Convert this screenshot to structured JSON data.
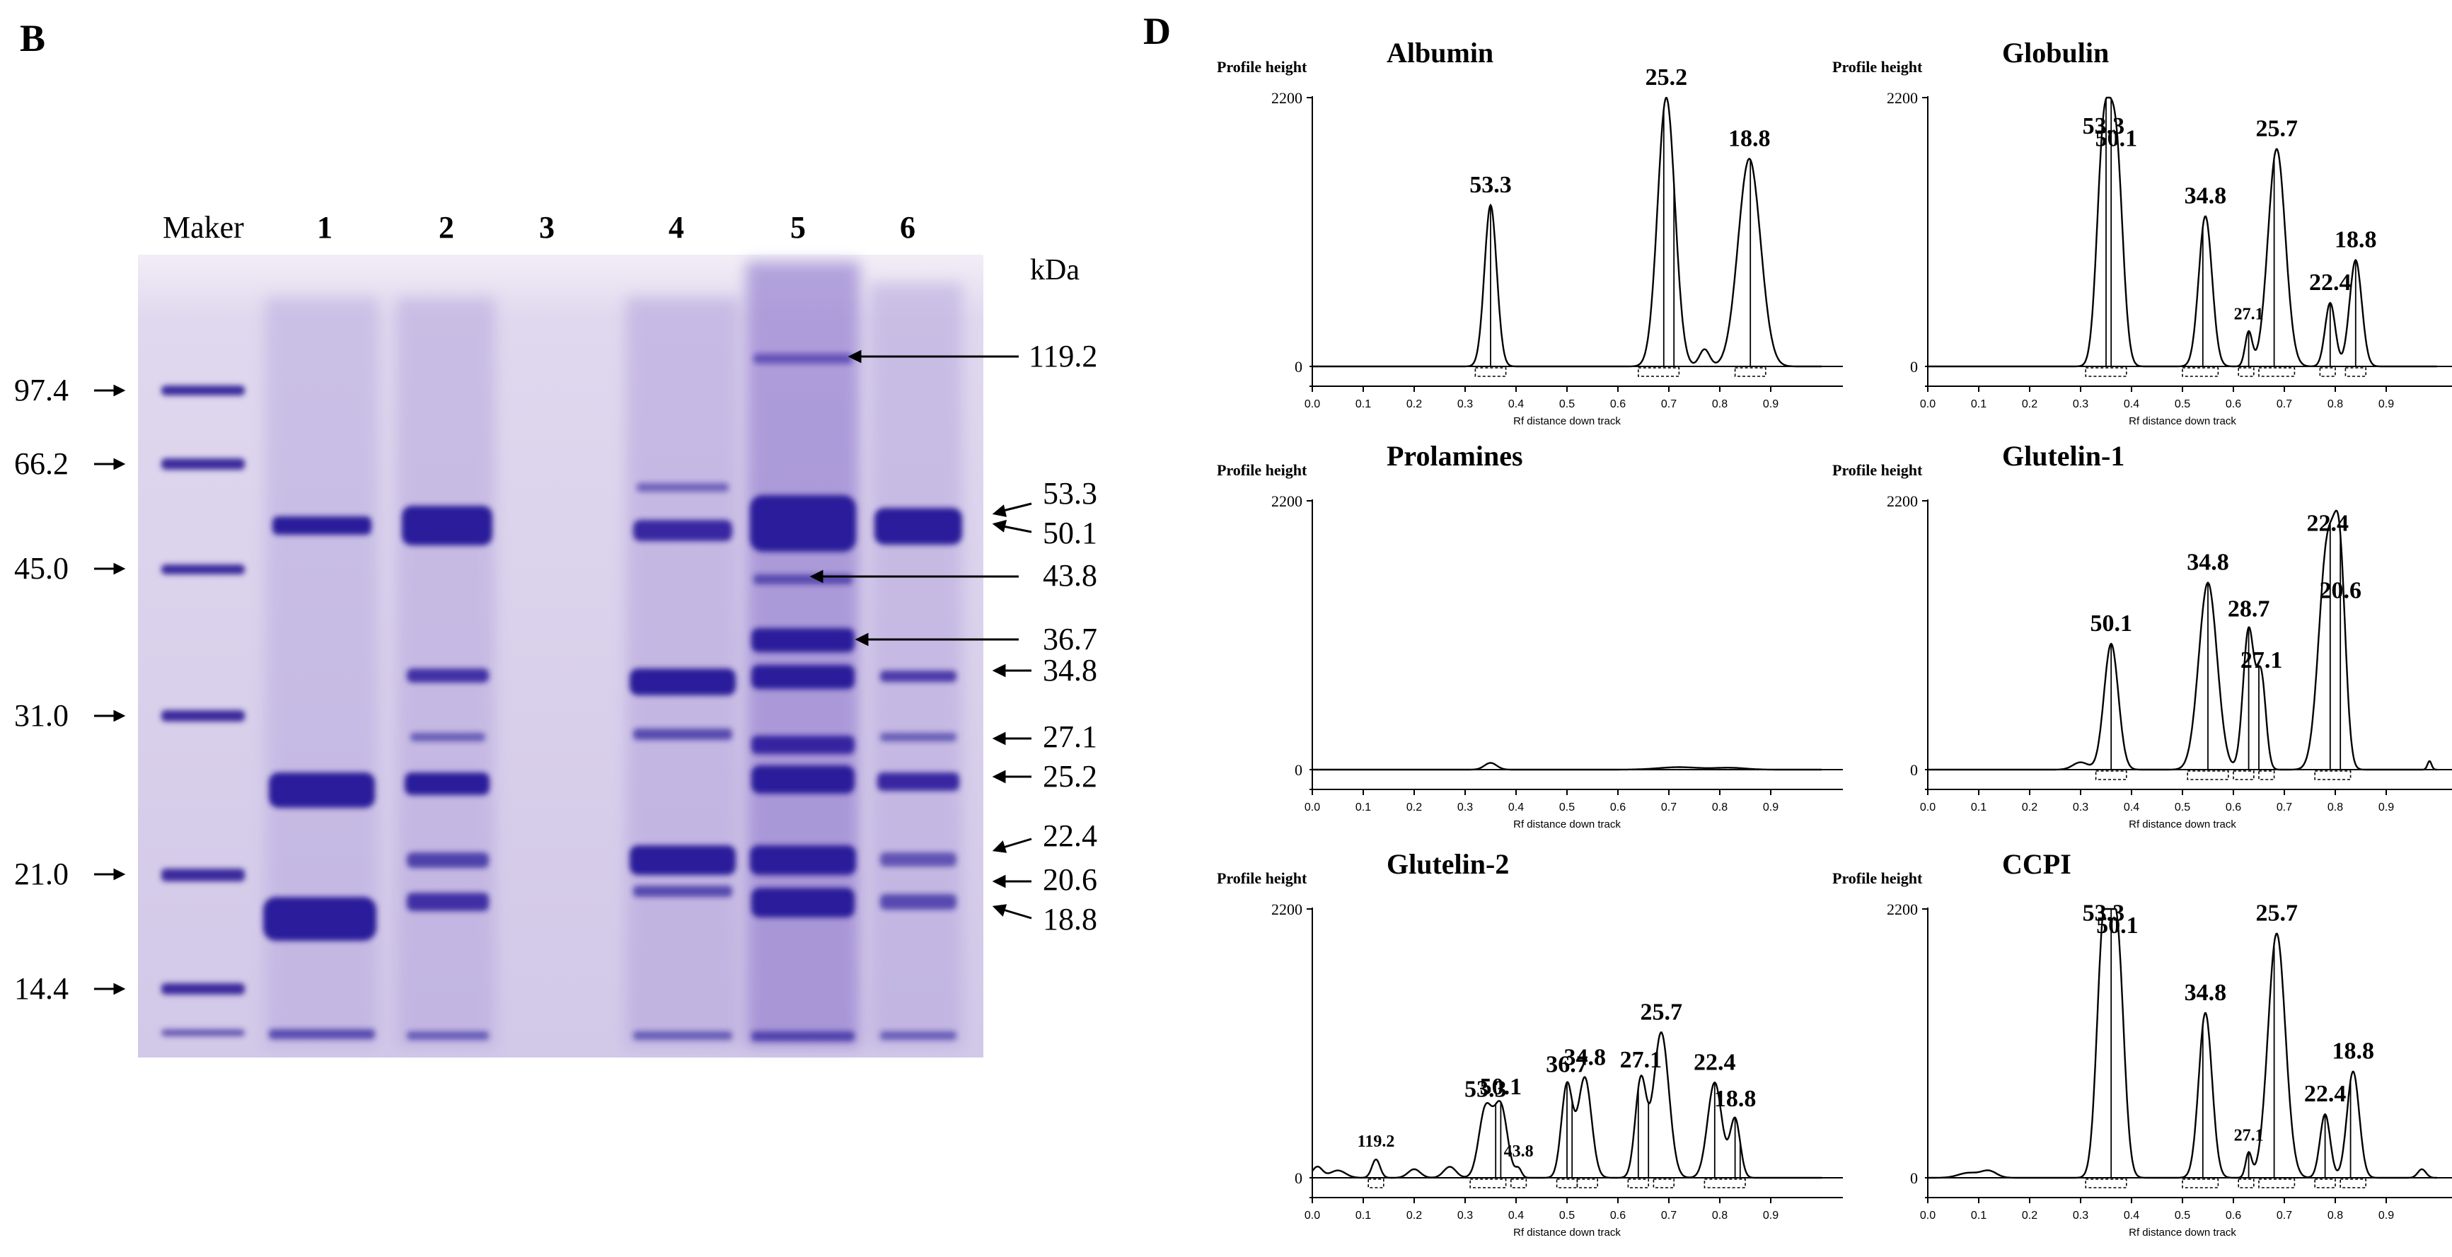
{
  "panel_b": {
    "letter": "B",
    "lane_labels": [
      "Maker",
      "1",
      "2",
      "3",
      "4",
      "5",
      "6"
    ],
    "unit": "kDa",
    "marker_sizes": [
      "97.4",
      "66.2",
      "45.0",
      "31.0",
      "21.0",
      "14.4"
    ],
    "band_labels": [
      "119.2",
      "53.3",
      "50.1",
      "43.8",
      "36.7",
      "34.8",
      "27.1",
      "25.2",
      "22.4",
      "20.6",
      "18.8"
    ],
    "colors": {
      "gel_background": "#d9d2ea",
      "band": "#2a1a9a",
      "faint_band": "#6a4ab0"
    }
  },
  "panel_d": {
    "letter": "D",
    "y_axis_label": "Profile height",
    "x_axis_label": "Rf distance down track",
    "y_ticks": [
      "2200",
      "0"
    ],
    "x_ticks": [
      "0.0",
      "0.1",
      "0.2",
      "0.3",
      "0.4",
      "0.5",
      "0.6",
      "0.7",
      "0.8",
      "0.9"
    ]
  },
  "chart_data": [
    {
      "type": "area",
      "title": "Albumin",
      "xlabel": "Rf distance down track",
      "ylabel": "Profile height",
      "xlim": [
        0,
        1.0
      ],
      "ylim": [
        0,
        2200
      ],
      "peaks": [
        {
          "x": 0.35,
          "y": 1320,
          "w": 0.012,
          "label": "53.3"
        },
        {
          "x": 0.695,
          "y": 2200,
          "w": 0.017,
          "label": "25.2"
        },
        {
          "x": 0.77,
          "y": 140,
          "w": 0.01,
          "label": ""
        },
        {
          "x": 0.858,
          "y": 1700,
          "w": 0.022,
          "label": "18.8"
        }
      ],
      "bands": [
        [
          0.32,
          0.38
        ],
        [
          0.64,
          0.72
        ],
        [
          0.83,
          0.89
        ]
      ],
      "verticals": [
        0.35,
        0.69,
        0.71,
        0.86
      ]
    },
    {
      "type": "area",
      "title": "Globulin",
      "xlabel": "Rf distance down track",
      "ylabel": "Profile height",
      "xlim": [
        0,
        1.0
      ],
      "ylim": [
        0,
        2200
      ],
      "peaks": [
        {
          "x": 0.345,
          "y": 1800,
          "w": 0.013,
          "label": "53.3"
        },
        {
          "x": 0.37,
          "y": 1700,
          "w": 0.013,
          "label": "50.1"
        },
        {
          "x": 0.545,
          "y": 1230,
          "w": 0.013,
          "label": "34.8"
        },
        {
          "x": 0.63,
          "y": 280,
          "w": 0.007,
          "label": "27.1"
        },
        {
          "x": 0.685,
          "y": 1780,
          "w": 0.017,
          "label": "25.7"
        },
        {
          "x": 0.79,
          "y": 520,
          "w": 0.01,
          "label": "22.4"
        },
        {
          "x": 0.84,
          "y": 870,
          "w": 0.012,
          "label": "18.8"
        }
      ],
      "bands": [
        [
          0.31,
          0.39
        ],
        [
          0.5,
          0.57
        ],
        [
          0.61,
          0.64
        ],
        [
          0.65,
          0.72
        ],
        [
          0.77,
          0.8
        ],
        [
          0.82,
          0.86
        ]
      ],
      "verticals": [
        0.35,
        0.36,
        0.54,
        0.63,
        0.68,
        0.79,
        0.84
      ]
    },
    {
      "type": "area",
      "title": "Prolamines",
      "xlabel": "Rf distance down track",
      "ylabel": "Profile height",
      "xlim": [
        0,
        1.0
      ],
      "ylim": [
        0,
        2200
      ],
      "peaks": [
        {
          "x": 0.35,
          "y": 55,
          "w": 0.012,
          "label": ""
        },
        {
          "x": 0.72,
          "y": 20,
          "w": 0.04,
          "label": ""
        },
        {
          "x": 0.82,
          "y": 15,
          "w": 0.03,
          "label": ""
        }
      ],
      "bands": [],
      "verticals": []
    },
    {
      "type": "area",
      "title": "Glutelin-1",
      "xlabel": "Rf distance down track",
      "ylabel": "Profile height",
      "xlim": [
        0,
        1.0
      ],
      "ylim": [
        0,
        2200
      ],
      "peaks": [
        {
          "x": 0.3,
          "y": 60,
          "w": 0.015,
          "label": ""
        },
        {
          "x": 0.36,
          "y": 1030,
          "w": 0.014,
          "label": "50.1"
        },
        {
          "x": 0.55,
          "y": 1530,
          "w": 0.018,
          "label": "34.8"
        },
        {
          "x": 0.63,
          "y": 1150,
          "w": 0.011,
          "label": "28.7"
        },
        {
          "x": 0.655,
          "y": 730,
          "w": 0.009,
          "label": "27.1"
        },
        {
          "x": 0.785,
          "y": 1850,
          "w": 0.017,
          "label": "22.4"
        },
        {
          "x": 0.81,
          "y": 1300,
          "w": 0.011,
          "label": "20.6"
        },
        {
          "x": 0.985,
          "y": 70,
          "w": 0.004,
          "label": ""
        }
      ],
      "bands": [
        [
          0.33,
          0.39
        ],
        [
          0.51,
          0.59
        ],
        [
          0.6,
          0.64
        ],
        [
          0.65,
          0.68
        ],
        [
          0.76,
          0.83
        ]
      ],
      "verticals": [
        0.36,
        0.55,
        0.63,
        0.65,
        0.79,
        0.81
      ]
    },
    {
      "type": "area",
      "title": "Glutelin-2",
      "xlabel": "Rf distance down track",
      "ylabel": "Profile height",
      "xlim": [
        0,
        1.0
      ],
      "ylim": [
        0,
        2200
      ],
      "peaks": [
        {
          "x": 0.01,
          "y": 90,
          "w": 0.01,
          "label": ""
        },
        {
          "x": 0.05,
          "y": 60,
          "w": 0.015,
          "label": ""
        },
        {
          "x": 0.125,
          "y": 150,
          "w": 0.008,
          "label": "119.2"
        },
        {
          "x": 0.2,
          "y": 70,
          "w": 0.012,
          "label": ""
        },
        {
          "x": 0.27,
          "y": 90,
          "w": 0.012,
          "label": ""
        },
        {
          "x": 0.34,
          "y": 560,
          "w": 0.013,
          "label": "53.3"
        },
        {
          "x": 0.37,
          "y": 580,
          "w": 0.013,
          "label": "50.1"
        },
        {
          "x": 0.405,
          "y": 70,
          "w": 0.006,
          "label": "43.8"
        },
        {
          "x": 0.5,
          "y": 760,
          "w": 0.011,
          "label": "36.7"
        },
        {
          "x": 0.535,
          "y": 820,
          "w": 0.013,
          "label": "34.8"
        },
        {
          "x": 0.645,
          "y": 800,
          "w": 0.011,
          "label": "27.1"
        },
        {
          "x": 0.685,
          "y": 1190,
          "w": 0.015,
          "label": "25.7"
        },
        {
          "x": 0.79,
          "y": 780,
          "w": 0.014,
          "label": "22.4"
        },
        {
          "x": 0.83,
          "y": 480,
          "w": 0.01,
          "label": "18.8"
        }
      ],
      "bands": [
        [
          0.11,
          0.14
        ],
        [
          0.31,
          0.38
        ],
        [
          0.39,
          0.42
        ],
        [
          0.48,
          0.52
        ],
        [
          0.52,
          0.56
        ],
        [
          0.62,
          0.66
        ],
        [
          0.67,
          0.71
        ],
        [
          0.77,
          0.85
        ]
      ],
      "verticals": [
        0.36,
        0.37,
        0.5,
        0.51,
        0.64,
        0.66,
        0.79,
        0.83,
        0.84
      ]
    },
    {
      "type": "area",
      "title": "CCPI",
      "xlabel": "Rf distance down track",
      "ylabel": "Profile height",
      "xlim": [
        0,
        1.0
      ],
      "ylim": [
        0,
        2200
      ],
      "peaks": [
        {
          "x": 0.08,
          "y": 40,
          "w": 0.02,
          "label": ""
        },
        {
          "x": 0.12,
          "y": 55,
          "w": 0.015,
          "label": ""
        },
        {
          "x": 0.345,
          "y": 2000,
          "w": 0.013,
          "label": "53.3"
        },
        {
          "x": 0.372,
          "y": 1900,
          "w": 0.013,
          "label": "50.1"
        },
        {
          "x": 0.545,
          "y": 1350,
          "w": 0.013,
          "label": "34.8"
        },
        {
          "x": 0.63,
          "y": 200,
          "w": 0.006,
          "label": "27.1"
        },
        {
          "x": 0.685,
          "y": 2000,
          "w": 0.017,
          "label": "25.7"
        },
        {
          "x": 0.78,
          "y": 520,
          "w": 0.01,
          "label": "22.4"
        },
        {
          "x": 0.835,
          "y": 870,
          "w": 0.012,
          "label": "18.8"
        },
        {
          "x": 0.97,
          "y": 70,
          "w": 0.008,
          "label": ""
        }
      ],
      "bands": [
        [
          0.31,
          0.39
        ],
        [
          0.5,
          0.57
        ],
        [
          0.61,
          0.64
        ],
        [
          0.65,
          0.72
        ],
        [
          0.76,
          0.8
        ],
        [
          0.81,
          0.86
        ]
      ],
      "verticals": [
        0.36,
        0.54,
        0.63,
        0.68,
        0.78,
        0.83
      ]
    }
  ]
}
